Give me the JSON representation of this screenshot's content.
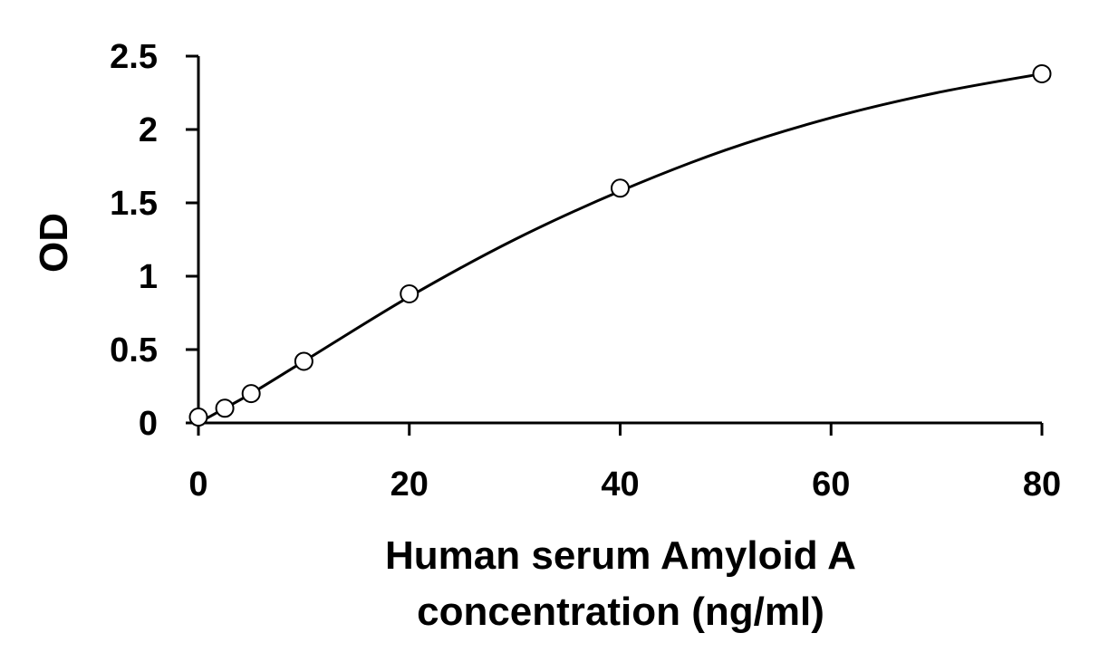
{
  "chart_data": {
    "type": "scatter",
    "title": "",
    "xlabel_lines": [
      "Human serum Amyloid A",
      "concentration (ng/ml)"
    ],
    "ylabel": "OD",
    "xlim": [
      0,
      80
    ],
    "ylim": [
      0,
      2.5
    ],
    "x_ticks": [
      0,
      20,
      40,
      60,
      80
    ],
    "x_tick_labels": [
      "0",
      "20",
      "40",
      "60",
      "80"
    ],
    "y_ticks": [
      0,
      0.5,
      1,
      1.5,
      2,
      2.5
    ],
    "y_tick_labels": [
      "0",
      "0.5",
      "1",
      "1.5",
      "2",
      "2.5"
    ],
    "grid": false,
    "legend": "none",
    "series": [
      {
        "marker": "open-circle",
        "x": [
          0,
          2.5,
          5,
          10,
          20,
          40,
          80
        ],
        "y": [
          0.04,
          0.1,
          0.2,
          0.42,
          0.88,
          1.6,
          2.38
        ]
      }
    ],
    "fit_curve": {
      "type": "smooth",
      "x": [
        0,
        2.5,
        5,
        10,
        20,
        30,
        40,
        50,
        60,
        70,
        80
      ],
      "y": [
        0.0,
        0.1,
        0.2,
        0.42,
        0.86,
        1.25,
        1.58,
        1.86,
        2.08,
        2.25,
        2.38
      ]
    },
    "colors": {
      "axis": "#000000",
      "line": "#000000",
      "marker_fill": "#ffffff",
      "marker_stroke": "#000000"
    }
  }
}
